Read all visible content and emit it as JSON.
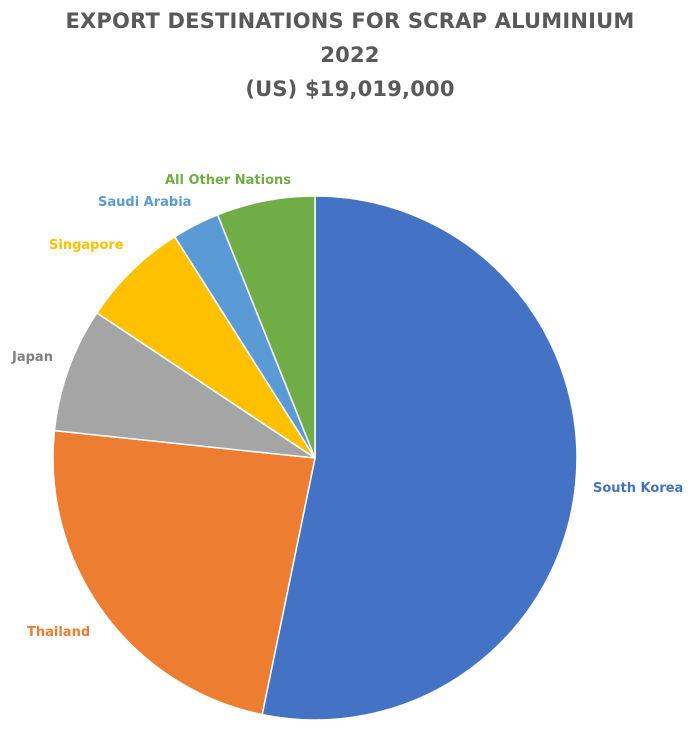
{
  "chart_data": {
    "type": "pie",
    "title_lines": [
      "EXPORT DESTINATIONS FOR SCRAP ALUMINIUM",
      "2022",
      "(US) $19,019,000"
    ],
    "start_angle_deg": 0,
    "direction": "clockwise",
    "slices": [
      {
        "label": "South Korea",
        "value": 52.7,
        "color": "#4472C4",
        "label_color": "#4472C4"
      },
      {
        "label": "Thailand",
        "value": 23.2,
        "color": "#ED7D31",
        "label_color": "#ED7D31"
      },
      {
        "label": "Japan",
        "value": 7.6,
        "color": "#A5A5A5",
        "label_color": "#808080"
      },
      {
        "label": "Singapore",
        "value": 6.6,
        "color": "#FFC000",
        "label_color": "#FFC000"
      },
      {
        "label": "Saudi Arabia",
        "value": 2.9,
        "color": "#5B9BD5",
        "label_color": "#5B9BD5"
      },
      {
        "label": "All Other Nations",
        "value": 6.0,
        "color": "#70AD47",
        "label_color": "#70AD47"
      }
    ],
    "legend": "none",
    "data_labels": "category-names-outside"
  }
}
